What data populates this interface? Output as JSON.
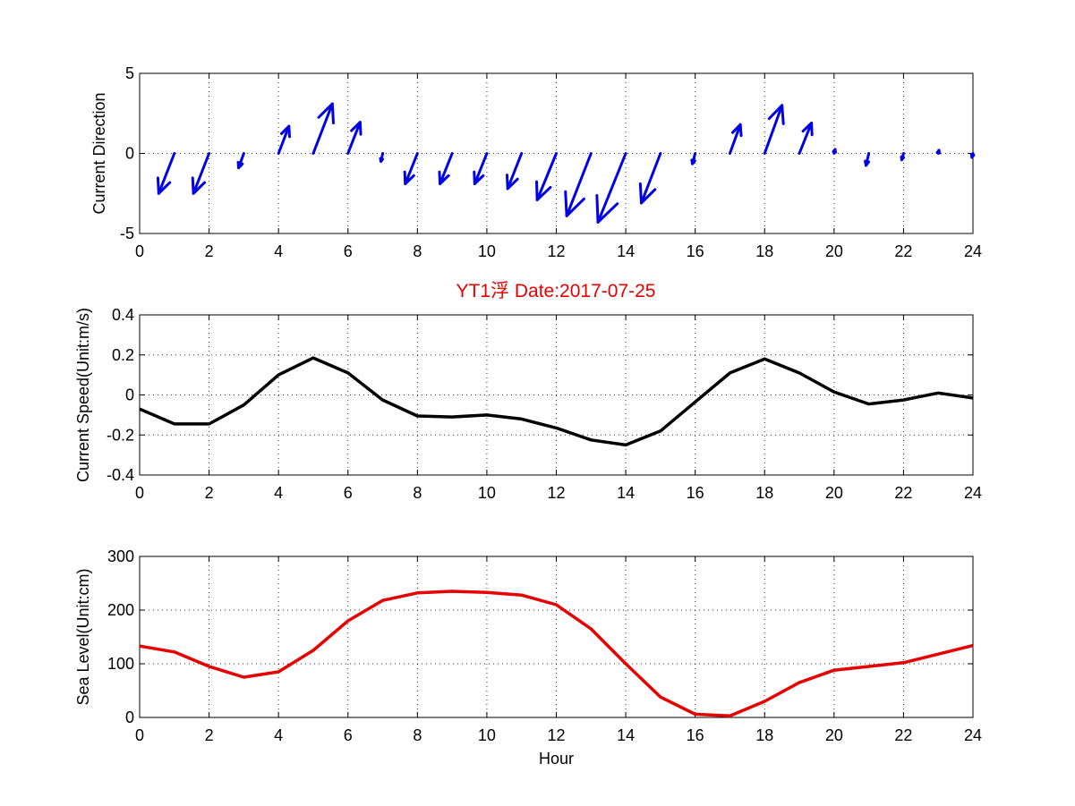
{
  "colors": {
    "quiver": "#0000e6",
    "speed_line": "#000000",
    "sea_level_line": "#e60000",
    "title": "#e60000"
  },
  "chart_data": [
    {
      "type": "quiver",
      "ylabel": "Current Direction",
      "xlim": [
        0,
        24
      ],
      "ylim": [
        -5,
        5
      ],
      "x_ticks": [
        "0",
        "2",
        "4",
        "6",
        "8",
        "10",
        "12",
        "14",
        "16",
        "18",
        "20",
        "22",
        "24"
      ],
      "y_ticks": [
        "-5",
        "0",
        "5"
      ],
      "grid": true,
      "vectors": [
        {
          "x": 1,
          "u": -0.45,
          "v": -2.5
        },
        {
          "x": 2,
          "u": -0.45,
          "v": -2.5
        },
        {
          "x": 3,
          "u": -0.15,
          "v": -0.9
        },
        {
          "x": 4,
          "u": 0.3,
          "v": 1.7
        },
        {
          "x": 5,
          "u": 0.55,
          "v": 3.1
        },
        {
          "x": 6,
          "u": 0.35,
          "v": 1.95
        },
        {
          "x": 7,
          "u": -0.05,
          "v": -0.5
        },
        {
          "x": 8,
          "u": -0.35,
          "v": -1.9
        },
        {
          "x": 9,
          "u": -0.35,
          "v": -1.9
        },
        {
          "x": 10,
          "u": -0.35,
          "v": -1.9
        },
        {
          "x": 11,
          "u": -0.4,
          "v": -2.2
        },
        {
          "x": 12,
          "u": -0.55,
          "v": -2.9
        },
        {
          "x": 13,
          "u": -0.7,
          "v": -3.9
        },
        {
          "x": 14,
          "u": -0.8,
          "v": -4.3
        },
        {
          "x": 15,
          "u": -0.55,
          "v": -3.1
        },
        {
          "x": 16,
          "u": -0.08,
          "v": -0.65
        },
        {
          "x": 17,
          "u": 0.3,
          "v": 1.8
        },
        {
          "x": 18,
          "u": 0.5,
          "v": 3.0
        },
        {
          "x": 19,
          "u": 0.35,
          "v": 1.9
        },
        {
          "x": 20,
          "u": 0.03,
          "v": 0.25
        },
        {
          "x": 21,
          "u": -0.08,
          "v": -0.75
        },
        {
          "x": 22,
          "u": -0.05,
          "v": -0.4
        },
        {
          "x": 23,
          "u": 0.02,
          "v": 0.2
        },
        {
          "x": 24,
          "u": -0.03,
          "v": -0.25
        }
      ]
    },
    {
      "type": "line",
      "title": "YT1浮    Date:2017-07-25",
      "ylabel": "Current Speed(Unit:m/s)",
      "xlim": [
        0,
        24
      ],
      "ylim": [
        -0.4,
        0.4
      ],
      "x_ticks": [
        "0",
        "2",
        "4",
        "6",
        "8",
        "10",
        "12",
        "14",
        "16",
        "18",
        "20",
        "22",
        "24"
      ],
      "y_ticks": [
        "-0.4",
        "-0.2",
        "0",
        "0.2",
        "0.4"
      ],
      "grid": true,
      "x": [
        0,
        1,
        2,
        3,
        4,
        5,
        6,
        7,
        8,
        9,
        10,
        11,
        12,
        13,
        14,
        15,
        16,
        17,
        18,
        19,
        20,
        21,
        22,
        23,
        24
      ],
      "values": [
        -0.07,
        -0.145,
        -0.145,
        -0.05,
        0.1,
        0.185,
        0.11,
        -0.025,
        -0.105,
        -0.11,
        -0.1,
        -0.12,
        -0.165,
        -0.225,
        -0.25,
        -0.18,
        -0.035,
        0.11,
        0.18,
        0.11,
        0.015,
        -0.045,
        -0.025,
        0.01,
        -0.015
      ]
    },
    {
      "type": "line",
      "xlabel": "Hour",
      "ylabel": "Sea Level(Unit:cm)",
      "xlim": [
        0,
        24
      ],
      "ylim": [
        0,
        300
      ],
      "x_ticks": [
        "0",
        "2",
        "4",
        "6",
        "8",
        "10",
        "12",
        "14",
        "16",
        "18",
        "20",
        "22",
        "24"
      ],
      "y_ticks": [
        "0",
        "100",
        "200",
        "300"
      ],
      "grid": true,
      "x": [
        0,
        1,
        2,
        3,
        4,
        5,
        6,
        7,
        8,
        9,
        10,
        11,
        12,
        13,
        14,
        15,
        16,
        17,
        18,
        19,
        20,
        21,
        22,
        23,
        24
      ],
      "values": [
        133,
        122,
        95,
        75,
        85,
        125,
        180,
        218,
        232,
        235,
        233,
        228,
        210,
        165,
        100,
        38,
        6,
        3,
        30,
        65,
        88,
        95,
        102,
        118,
        134
      ]
    }
  ]
}
